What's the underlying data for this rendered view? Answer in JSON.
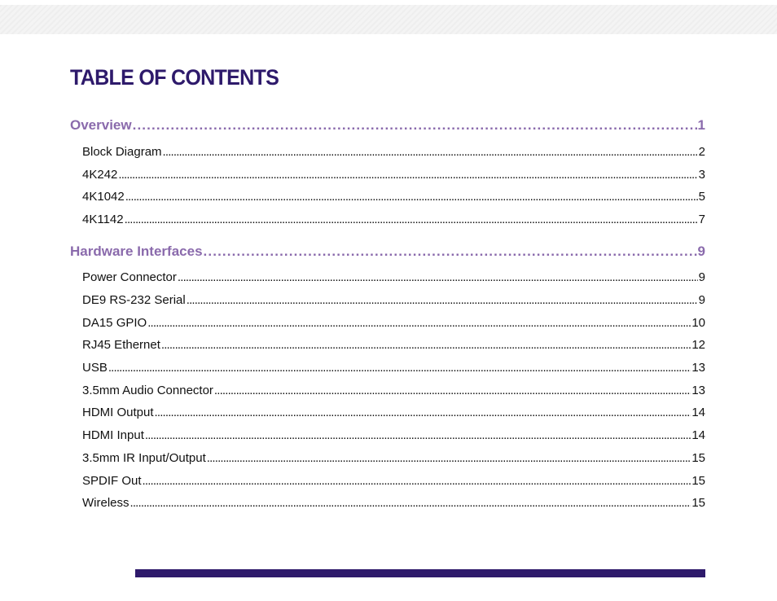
{
  "title": "TABLE OF CONTENTS",
  "sections": [
    {
      "title": "Overview",
      "page": "1",
      "entries": [
        {
          "title": "Block Diagram",
          "page": "2"
        },
        {
          "title": "4K242",
          "page": "3"
        },
        {
          "title": "4K1042",
          "page": "5"
        },
        {
          "title": "4K1142",
          "page": "7"
        }
      ]
    },
    {
      "title": "Hardware Interfaces",
      "page": "9",
      "entries": [
        {
          "title": "Power Connector",
          "page": "9"
        },
        {
          "title": "DE9 RS-232 Serial",
          "page": "9"
        },
        {
          "title": "DA15 GPIO",
          "page": "10"
        },
        {
          "title": "RJ45 Ethernet",
          "page": "12"
        },
        {
          "title": "USB",
          "page": "13"
        },
        {
          "title": "3.5mm Audio Connector",
          "page": "13"
        },
        {
          "title": "HDMI Output",
          "page": "14"
        },
        {
          "title": "HDMI Input",
          "page": "14"
        },
        {
          "title": "3.5mm IR Input/Output",
          "page": "15"
        },
        {
          "title": "SPDIF Out",
          "page": "15"
        },
        {
          "title": "Wireless",
          "page": "15"
        }
      ]
    }
  ],
  "colors": {
    "title": "#2e1a6b",
    "section": "#8a6aac",
    "entry": "#111111",
    "bar": "#2e1a6b"
  }
}
